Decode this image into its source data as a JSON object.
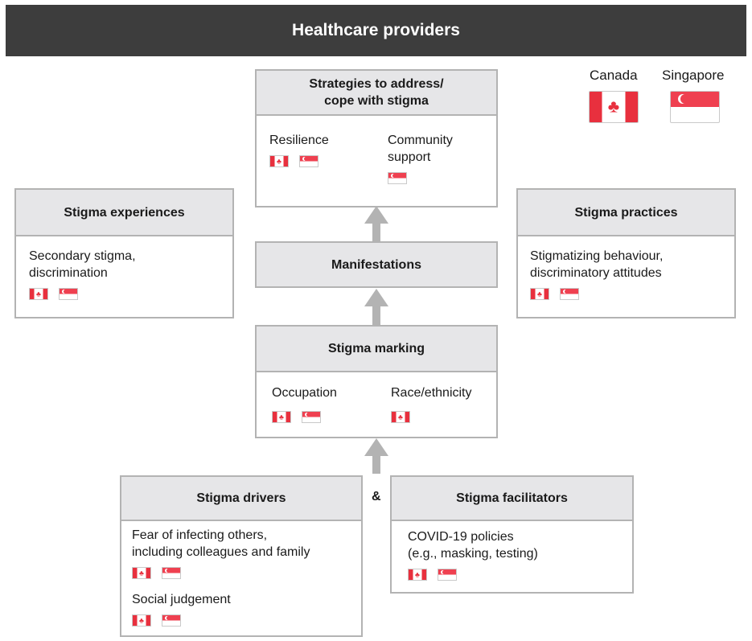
{
  "header": {
    "title": "Healthcare providers"
  },
  "legend": {
    "canada": {
      "label": "Canada",
      "flag_icon": "canada-flag-icon"
    },
    "singapore": {
      "label": "Singapore",
      "flag_icon": "singapore-flag-icon"
    }
  },
  "colors": {
    "banner": "#3d3d3d",
    "box_header": "#e6e6e8",
    "border": "#b3b3b3",
    "arrow": "#b3b3b3",
    "flag_red": "#e8303e"
  },
  "strategies": {
    "title": "Strategies to address/ cope with stigma",
    "title_line1": "Strategies to address/",
    "title_line2": "cope with stigma",
    "items": [
      {
        "label": "Resilience",
        "flags": [
          "canada",
          "singapore"
        ]
      },
      {
        "label": "Community support",
        "line1": "Community",
        "line2": "support",
        "flags": [
          "singapore"
        ]
      }
    ]
  },
  "experiences": {
    "title": "Stigma experiences",
    "items": [
      {
        "label": "Secondary stigma, discrimination",
        "line1": "Secondary stigma,",
        "line2": "discrimination",
        "flags": [
          "canada",
          "singapore"
        ]
      }
    ]
  },
  "practices": {
    "title": "Stigma practices",
    "items": [
      {
        "label": "Stigmatizing behaviour, discriminatory attitudes",
        "line1": "Stigmatizing behaviour,",
        "line2": "discriminatory attitudes",
        "flags": [
          "canada",
          "singapore"
        ]
      }
    ]
  },
  "manifestations": {
    "title": "Manifestations"
  },
  "marking": {
    "title": "Stigma marking",
    "items": [
      {
        "label": "Occupation",
        "flags": [
          "canada",
          "singapore"
        ]
      },
      {
        "label": "Race/ethnicity",
        "flags": [
          "canada"
        ]
      }
    ]
  },
  "drivers": {
    "title": "Stigma drivers",
    "items": [
      {
        "label": "Fear of infecting others, including colleagues and family",
        "line1": "Fear of infecting others,",
        "line2": "including colleagues and family",
        "flags": [
          "canada",
          "singapore"
        ]
      },
      {
        "label": "Social judgement",
        "flags": [
          "canada",
          "singapore"
        ]
      }
    ]
  },
  "connector": {
    "ampersand": "&"
  },
  "facilitators": {
    "title": "Stigma facilitators",
    "items": [
      {
        "label": "COVID-19 policies (e.g., masking, testing)",
        "line1": "COVID-19 policies",
        "line2": "(e.g., masking, testing)",
        "flags": [
          "canada",
          "singapore"
        ]
      }
    ]
  }
}
